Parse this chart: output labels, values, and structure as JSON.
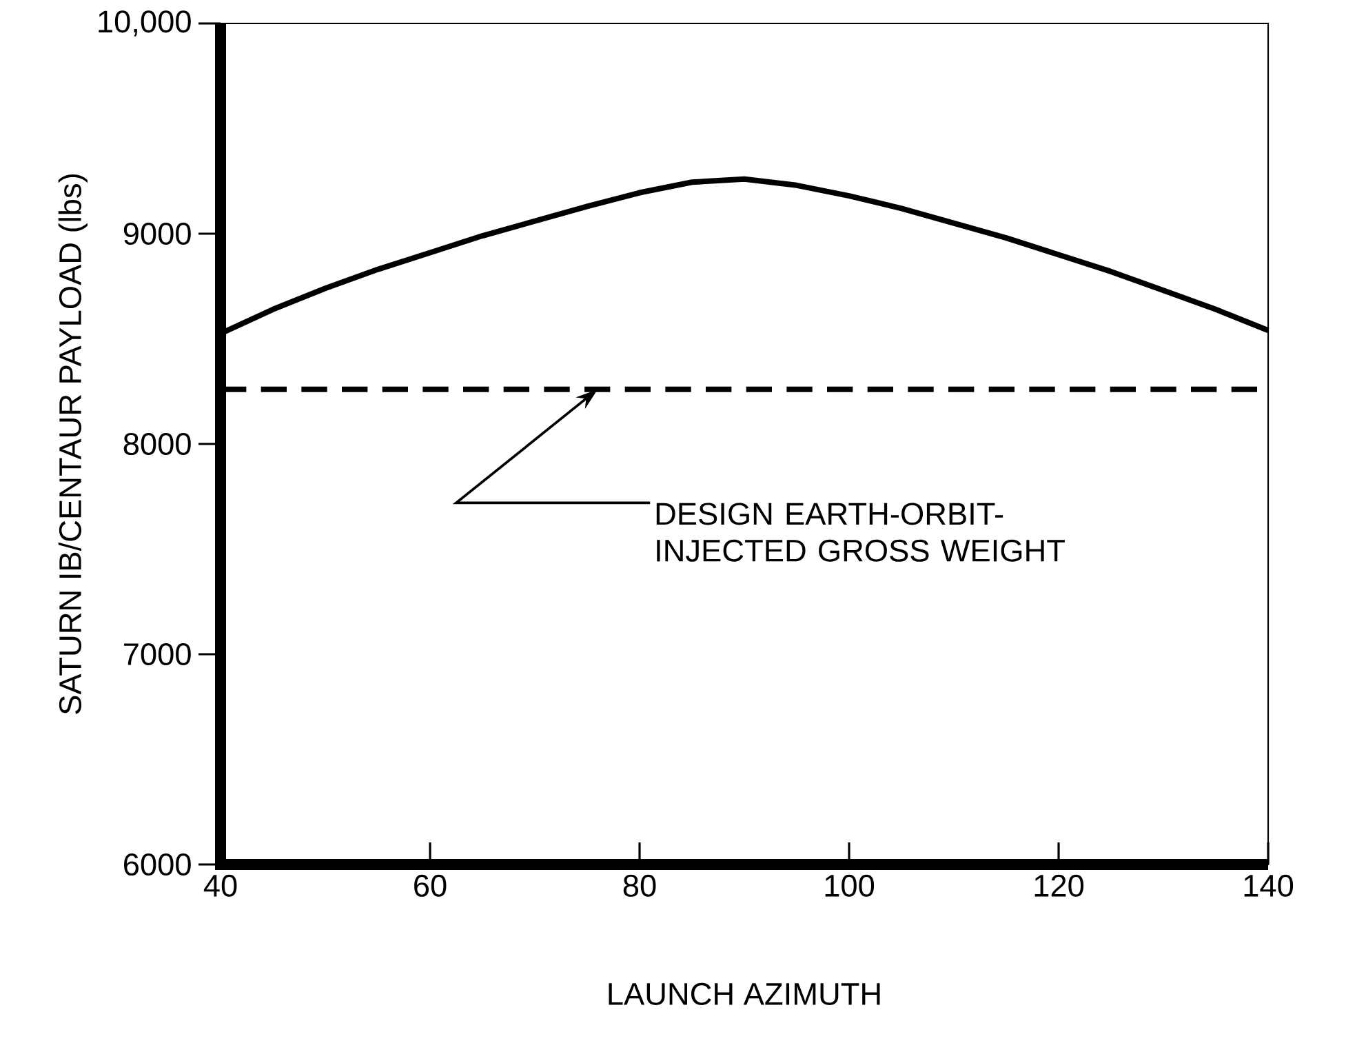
{
  "chart_data": {
    "type": "line",
    "xlabel": "LAUNCH AZIMUTH",
    "ylabel": "SATURN IB/CENTAUR PAYLOAD (lbs)",
    "x": [
      40,
      45,
      50,
      55,
      60,
      65,
      70,
      75,
      80,
      85,
      90,
      95,
      100,
      105,
      110,
      115,
      120,
      125,
      130,
      135,
      140
    ],
    "series": [
      {
        "color": "#000000",
        "values": [
          8525,
          8640,
          8740,
          8830,
          8910,
          8990,
          9060,
          9130,
          9195,
          9245,
          9260,
          9230,
          9180,
          9120,
          9050,
          8980,
          8900,
          8820,
          8730,
          8640,
          8540
        ]
      }
    ],
    "xlim": [
      40,
      140
    ],
    "ylim": [
      6000,
      10000
    ],
    "xticks": [
      40,
      60,
      80,
      100,
      120,
      140
    ],
    "yticks": [
      6000,
      7000,
      8000,
      9000,
      {
        "value": 10000,
        "label": "10,000"
      }
    ],
    "ref_lines": [
      {
        "axis": "y",
        "value": 8260,
        "label": "DESIGN EARTH-ORBIT-\nINJECTED GROSS WEIGHT",
        "color": "#000000",
        "line_style": "dashed"
      }
    ],
    "grid": false,
    "marker": "none",
    "line_style": "solid"
  }
}
